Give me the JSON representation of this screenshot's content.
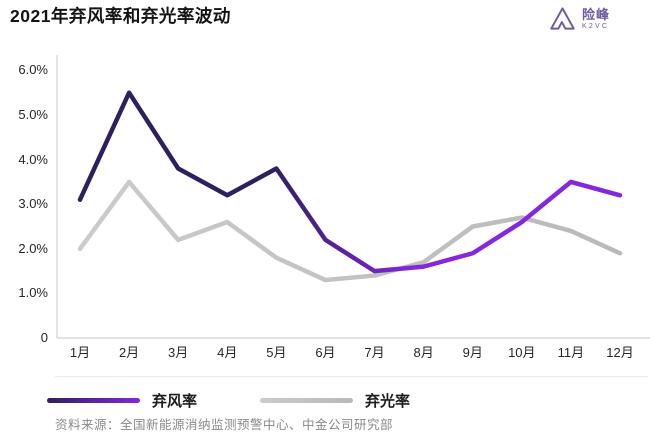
{
  "header": {
    "title": "2021年弃风率和弃光率波动",
    "logo": {
      "brand": "险峰",
      "brand_sub": "K2VC",
      "color": "#6E5C9F"
    }
  },
  "chart_data": {
    "type": "line",
    "title": "2021年弃风率和弃光率波动",
    "categories": [
      "1月",
      "2月",
      "3月",
      "4月",
      "5月",
      "6月",
      "7月",
      "8月",
      "9月",
      "10月",
      "11月",
      "12月"
    ],
    "series": [
      {
        "name": "弃风率",
        "values": [
          3.1,
          5.5,
          3.8,
          3.2,
          3.8,
          2.2,
          1.5,
          1.6,
          1.9,
          2.6,
          3.5,
          3.2
        ],
        "color_gradient": [
          "#2E1F5F",
          "#8527DE"
        ]
      },
      {
        "name": "弃光率",
        "values": [
          2.0,
          3.5,
          2.2,
          2.6,
          1.8,
          1.3,
          1.4,
          1.7,
          2.5,
          2.7,
          2.4,
          1.9
        ],
        "color_gradient": [
          "#CBCBCB",
          "#B9B9B9"
        ]
      }
    ],
    "unit": "%",
    "y_tick_labels": [
      "6.0%",
      "5.0%",
      "4.0%",
      "3.0%",
      "2.0%",
      "1.0%",
      "0"
    ],
    "y_tick_values": [
      6,
      5,
      4,
      3,
      2,
      1,
      0
    ],
    "ylim": [
      0,
      6.3
    ],
    "grid": false,
    "legend_position": "bottom"
  },
  "footer": {
    "source": "资料来源：全国新能源消纳监测预警中心、中金公司研究部"
  },
  "colors": {
    "axis": "#D9D9D9",
    "tick_text": "#262626",
    "source_text": "#8A8A8A"
  }
}
